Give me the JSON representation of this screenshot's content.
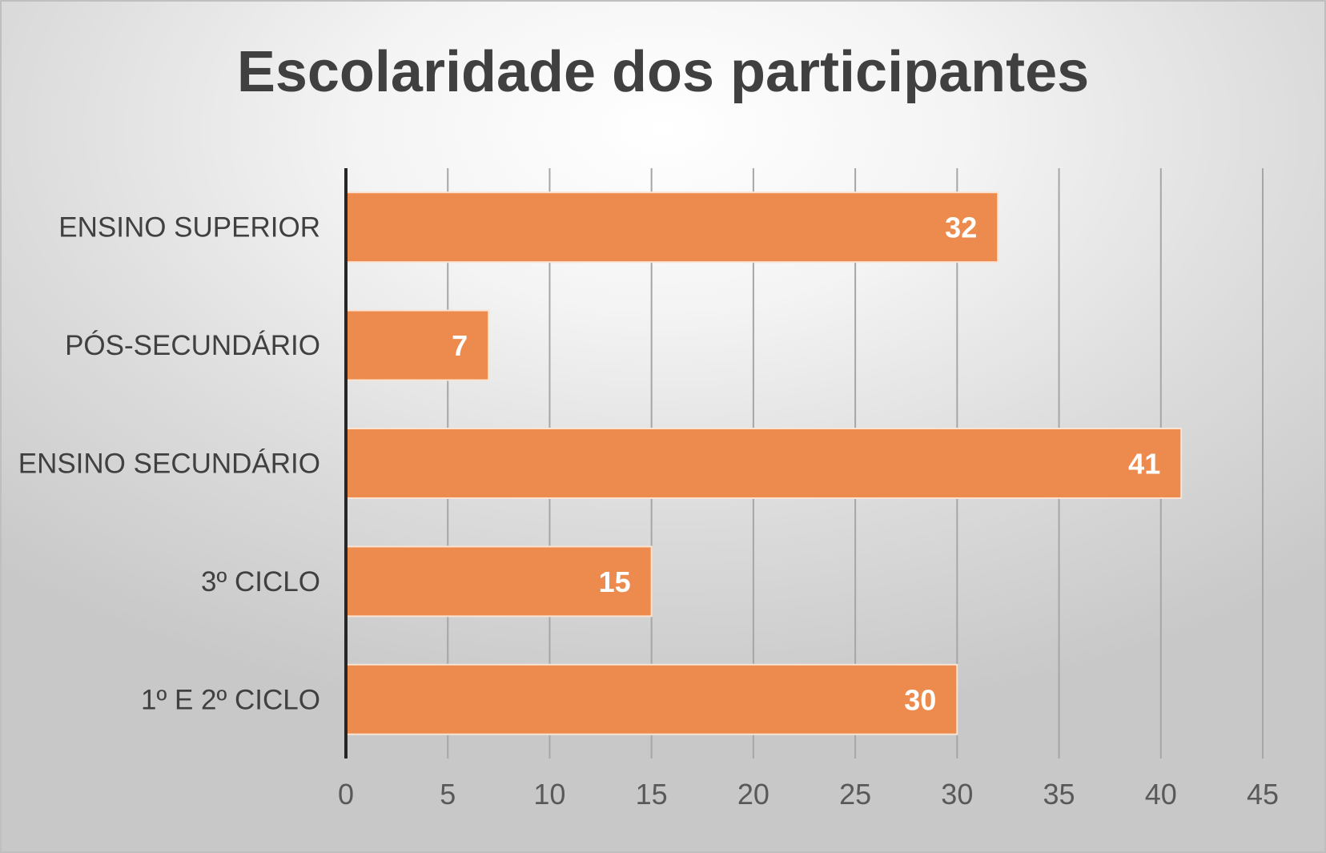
{
  "chart_data": {
    "type": "bar",
    "orientation": "horizontal",
    "title": "Escolaridade dos participantes",
    "categories": [
      "ENSINO SUPERIOR",
      "PÓS-SECUNDÁRIO",
      "ENSINO SECUNDÁRIO",
      "3º CICLO",
      "1º E 2º CICLO"
    ],
    "values": [
      32,
      7,
      41,
      15,
      30
    ],
    "xlim": [
      0,
      45
    ],
    "xticks": [
      0,
      5,
      10,
      15,
      20,
      25,
      30,
      35,
      40,
      45
    ],
    "xlabel": "",
    "ylabel": "",
    "grid": true,
    "data_labels": true,
    "legend": "none",
    "colors": {
      "bar": "#ed8b4e",
      "bar_border": "#fbe3d2",
      "gridline": "#a6a6a6",
      "axis": "#262626"
    }
  }
}
